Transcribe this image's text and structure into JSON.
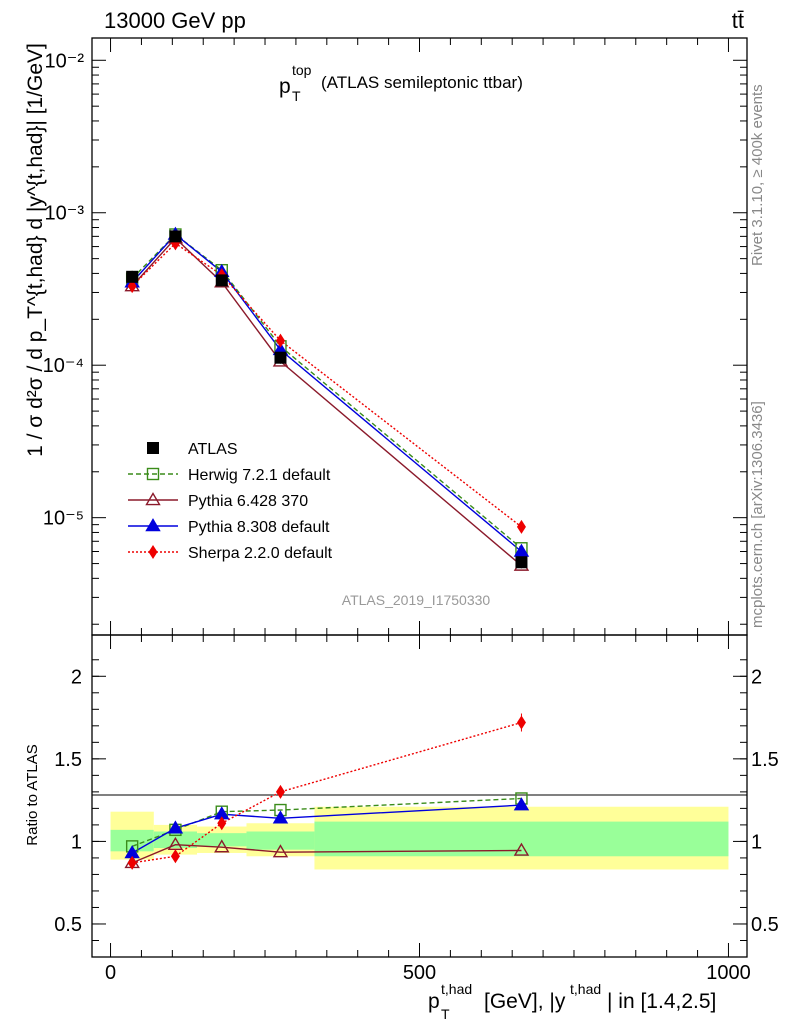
{
  "header": {
    "left": "13000 GeV pp",
    "right": "tt̄"
  },
  "side_text": {
    "rivet": "Rivet 3.1.10, ≥ 400k events",
    "mcplots": "mcplots.cern.ch [arXiv:1306.3436]"
  },
  "watermark": "ATLAS_2019_I1750330",
  "main_title": {
    "symbol": "p",
    "sub": "T",
    "sup": "top",
    "text": "(ATLAS semileptonic ttbar)"
  },
  "y_label_main": "1 / σ d²σ / d p_T^{t,had} d |y^{t,had}| [1/GeV]",
  "y_label_ratio": "Ratio to ATLAS",
  "x_label": "p_T^{t,had} [GeV], |y^{t,had}| in [1.4,2.5]",
  "colors": {
    "data": "#000000",
    "herwig": "#3a8c1a",
    "pythia6": "#8b1a2b",
    "pythia8": "#0000dd",
    "sherpa": "#ee0000",
    "band_inner": "#99ff99",
    "band_outer": "#ffff99"
  },
  "chart_data": [
    {
      "type": "line",
      "panel": "main",
      "y_scale": "log",
      "xlim": [
        -30,
        1030
      ],
      "ylim": [
        1.7e-06,
        0.014
      ],
      "y_tick_labels": [
        "10⁻⁵",
        "10⁻⁴",
        "10⁻³",
        "10⁻²"
      ],
      "y_tick_values": [
        1e-05,
        0.0001,
        0.001,
        0.01
      ],
      "bin_edges": [
        0,
        70,
        140,
        220,
        330,
        1000
      ],
      "x": [
        35,
        105,
        180,
        275,
        665
      ],
      "series": [
        {
          "name": "ATLAS",
          "key": "data",
          "marker": "square-filled",
          "style": "none",
          "values": [
            0.00038,
            0.0007,
            0.00036,
            0.000112,
            5.1e-06
          ]
        },
        {
          "name": "Herwig 7.2.1 default",
          "key": "herwig",
          "marker": "square-open",
          "style": "dashed",
          "values": [
            0.00037,
            0.00072,
            0.00042,
            0.000133,
            6.3e-06
          ]
        },
        {
          "name": "Pythia 6.428 370",
          "key": "pythia6",
          "marker": "triangle-open",
          "style": "solid",
          "values": [
            0.00033,
            0.00068,
            0.00035,
            0.000106,
            4.85e-06
          ]
        },
        {
          "name": "Pythia 8.308 default",
          "key": "pythia8",
          "marker": "triangle-filled",
          "style": "solid",
          "values": [
            0.00035,
            0.00072,
            0.00041,
            0.000126,
            6e-06
          ]
        },
        {
          "name": "Sherpa 2.2.0 default",
          "key": "sherpa",
          "marker": "diamond-filled",
          "style": "dotted",
          "values": [
            0.00033,
            0.00063,
            0.00039,
            0.000145,
            8.7e-06
          ]
        }
      ]
    },
    {
      "type": "line",
      "panel": "ratio",
      "y_scale": "linear",
      "xlim": [
        -30,
        1030
      ],
      "ylim": [
        0.3,
        2.25
      ],
      "x_tick_labels": [
        "0",
        "500",
        "1000"
      ],
      "x_tick_values": [
        0,
        500,
        1000
      ],
      "y_tick_labels": [
        "0.5",
        "1",
        "1.5",
        "2"
      ],
      "y_tick_values": [
        0.5,
        1.0,
        1.5,
        2.0
      ],
      "bin_edges": [
        0,
        70,
        140,
        220,
        330,
        1000
      ],
      "inner_band": [
        [
          0.94,
          1.07
        ],
        [
          0.96,
          1.06
        ],
        [
          0.97,
          1.05
        ],
        [
          0.95,
          1.06
        ],
        [
          0.91,
          1.12
        ]
      ],
      "outer_band": [
        [
          0.89,
          1.18
        ],
        [
          0.92,
          1.1
        ],
        [
          0.93,
          1.09
        ],
        [
          0.91,
          1.11
        ],
        [
          0.83,
          1.21
        ]
      ],
      "x": [
        35,
        105,
        180,
        275,
        665
      ],
      "series": [
        {
          "name": "Herwig 7.2.1 default",
          "key": "herwig",
          "marker": "square-open",
          "style": "dashed",
          "values": [
            0.97,
            1.07,
            1.18,
            1.19,
            1.26
          ]
        },
        {
          "name": "Pythia 6.428 370",
          "key": "pythia6",
          "marker": "triangle-open",
          "style": "solid",
          "values": [
            0.87,
            0.98,
            0.965,
            0.935,
            0.945
          ]
        },
        {
          "name": "Pythia 8.308 default",
          "key": "pythia8",
          "marker": "triangle-filled",
          "style": "solid",
          "values": [
            0.93,
            1.08,
            1.165,
            1.14,
            1.22
          ]
        },
        {
          "name": "Sherpa 2.2.0 default",
          "key": "sherpa",
          "marker": "diamond-filled",
          "style": "dotted",
          "values": [
            0.87,
            0.91,
            1.11,
            1.3,
            1.72
          ]
        }
      ]
    }
  ]
}
